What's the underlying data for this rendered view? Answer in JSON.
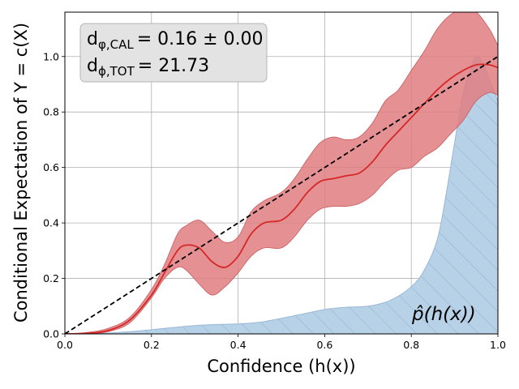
{
  "chart_data": {
    "type": "line",
    "xlabel": "Confidence (h(x))",
    "ylabel": "Conditional Expectation of Y = c(X)",
    "xlim": [
      0,
      1
    ],
    "ylim": [
      0,
      1.16
    ],
    "x_ticks": [
      "0.0",
      "0.2",
      "0.4",
      "0.6",
      "0.8",
      "1.0"
    ],
    "y_ticks": [
      "0.0",
      "0.2",
      "0.4",
      "0.6",
      "0.8",
      "1.0"
    ],
    "grid": true,
    "annotation_box": {
      "line1": {
        "symbol": "d",
        "subscript": "φ,CAL",
        "value": "= 0.16 ± 0.00"
      },
      "line2": {
        "symbol": "d",
        "subscript": "ϕ,TOT",
        "value": "= 21.73"
      }
    },
    "density_label": "p̂(h(x))",
    "colors": {
      "mean": "#d62728",
      "band": "#e17e80",
      "density_fill": "#b7d1e7",
      "density_edge": "#9ab8d8",
      "diagonal": "#000000",
      "grid": "#b0b0b0"
    },
    "series": [
      {
        "type": "line",
        "style": "solid",
        "x": [
          0.0,
          0.05,
          0.1,
          0.15,
          0.2,
          0.23,
          0.26,
          0.28,
          0.31,
          0.34,
          0.37,
          0.4,
          0.43,
          0.46,
          0.5,
          0.53,
          0.56,
          0.59,
          0.62,
          0.65,
          0.68,
          0.71,
          0.74,
          0.77,
          0.8,
          0.83,
          0.86,
          0.89,
          0.92,
          0.95,
          0.98,
          1.0
        ],
        "values": [
          0.0,
          0.002,
          0.012,
          0.05,
          0.14,
          0.22,
          0.3,
          0.32,
          0.31,
          0.26,
          0.24,
          0.28,
          0.36,
          0.4,
          0.41,
          0.45,
          0.51,
          0.55,
          0.56,
          0.57,
          0.58,
          0.62,
          0.68,
          0.73,
          0.78,
          0.83,
          0.88,
          0.92,
          0.95,
          0.97,
          0.97,
          0.96
        ]
      },
      {
        "type": "band",
        "x": [
          0.0,
          0.05,
          0.1,
          0.15,
          0.2,
          0.23,
          0.26,
          0.28,
          0.31,
          0.34,
          0.37,
          0.4,
          0.43,
          0.46,
          0.5,
          0.53,
          0.56,
          0.59,
          0.62,
          0.65,
          0.68,
          0.71,
          0.74,
          0.77,
          0.8,
          0.83,
          0.86,
          0.89,
          0.92,
          0.95,
          0.98,
          1.0
        ],
        "lower": [
          0.0,
          0.0,
          0.008,
          0.04,
          0.13,
          0.2,
          0.24,
          0.23,
          0.18,
          0.14,
          0.17,
          0.22,
          0.28,
          0.31,
          0.31,
          0.35,
          0.41,
          0.45,
          0.46,
          0.46,
          0.47,
          0.5,
          0.55,
          0.59,
          0.6,
          0.64,
          0.67,
          0.72,
          0.77,
          0.84,
          0.87,
          0.86
        ],
        "upper": [
          0.0,
          0.005,
          0.02,
          0.06,
          0.16,
          0.25,
          0.36,
          0.39,
          0.41,
          0.37,
          0.33,
          0.35,
          0.44,
          0.48,
          0.51,
          0.56,
          0.63,
          0.69,
          0.71,
          0.7,
          0.71,
          0.76,
          0.84,
          0.88,
          0.95,
          1.02,
          1.1,
          1.15,
          1.17,
          1.16,
          1.1,
          1.04
        ]
      },
      {
        "type": "diagonal",
        "style": "dashed",
        "x": [
          0.0,
          1.0
        ],
        "values": [
          0.0,
          1.0
        ]
      },
      {
        "type": "density",
        "x": [
          0.0,
          0.05,
          0.1,
          0.15,
          0.2,
          0.25,
          0.3,
          0.35,
          0.4,
          0.45,
          0.5,
          0.55,
          0.6,
          0.65,
          0.7,
          0.75,
          0.8,
          0.83,
          0.86,
          0.88,
          0.9,
          0.92,
          0.94,
          0.95,
          0.96,
          0.97,
          0.98,
          0.99,
          1.0
        ],
        "values": [
          0.0,
          0.001,
          0.003,
          0.008,
          0.015,
          0.023,
          0.03,
          0.034,
          0.036,
          0.042,
          0.056,
          0.072,
          0.088,
          0.096,
          0.1,
          0.12,
          0.17,
          0.23,
          0.34,
          0.5,
          0.69,
          0.87,
          0.97,
          1.0,
          0.99,
          0.96,
          0.92,
          0.88,
          0.84
        ]
      }
    ]
  }
}
